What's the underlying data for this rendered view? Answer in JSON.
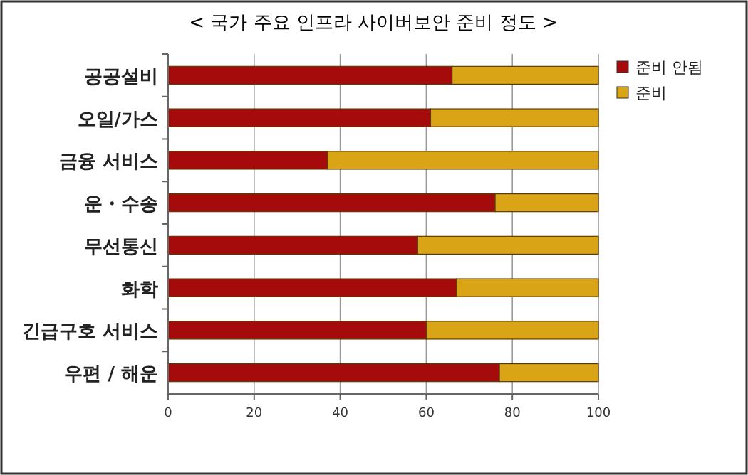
{
  "chart_data": {
    "type": "bar",
    "title": "< 국가 주요 인프라 사이버보안 준비 정도 >",
    "orientation": "horizontal",
    "stacked": true,
    "categories": [
      "공공설비",
      "오일/가스",
      "금융 서비스",
      "운・수송",
      "무선통신",
      "화학",
      "긴급구호 서비스",
      "우편 / 해운"
    ],
    "series": [
      {
        "name": "준비 안됨",
        "color": "#a50b0b",
        "values": [
          66,
          61,
          37,
          76,
          58,
          67,
          60,
          77
        ]
      },
      {
        "name": "준비",
        "color": "#d9a416",
        "values": [
          34,
          39,
          63,
          24,
          42,
          33,
          40,
          23
        ]
      }
    ],
    "xlim": [
      0,
      100
    ],
    "xticks": [
      0,
      20,
      40,
      60,
      80,
      100
    ],
    "grid": "x",
    "legend": "top right"
  }
}
